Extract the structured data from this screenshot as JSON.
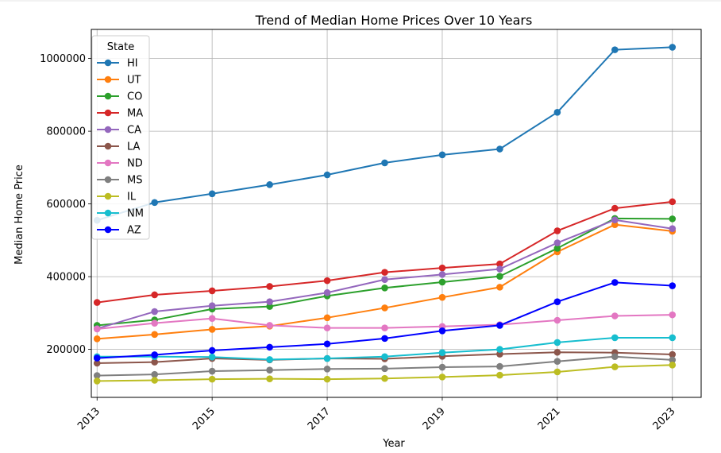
{
  "chart_data": {
    "type": "line",
    "title": "Trend of Median Home Prices Over 10 Years",
    "xlabel": "Year",
    "ylabel": "Median Home Price",
    "xlim": [
      2012.9,
      2023.5
    ],
    "ylim": [
      68000,
      1080000
    ],
    "x_ticks": [
      2013,
      2015,
      2017,
      2019,
      2021,
      2023
    ],
    "y_ticks": [
      200000,
      400000,
      600000,
      800000,
      1000000
    ],
    "grid": true,
    "legend_title": "State",
    "legend_position": "upper-left",
    "x": [
      2013,
      2014,
      2015,
      2016,
      2017,
      2018,
      2019,
      2020,
      2021,
      2022,
      2023
    ],
    "series": [
      {
        "name": "HI",
        "color": "#1f77b4",
        "values": [
          555000,
          604000,
          628000,
          653000,
          680000,
          713000,
          735000,
          751000,
          852000,
          1024000,
          1031000
        ]
      },
      {
        "name": "UT",
        "color": "#ff7f0e",
        "values": [
          229000,
          241000,
          255000,
          264000,
          287000,
          314000,
          343000,
          371000,
          468000,
          543000,
          525000
        ]
      },
      {
        "name": "CO",
        "color": "#2ca02c",
        "values": [
          266000,
          281000,
          311000,
          318000,
          347000,
          369000,
          385000,
          401000,
          478000,
          560000,
          559000
        ]
      },
      {
        "name": "MA",
        "color": "#d62728",
        "values": [
          329000,
          350000,
          361000,
          373000,
          389000,
          412000,
          424000,
          435000,
          526000,
          588000,
          606000
        ]
      },
      {
        "name": "CA",
        "color": "#9467bd",
        "values": [
          257000,
          304000,
          320000,
          331000,
          356000,
          392000,
          406000,
          421000,
          493000,
          556000,
          532000
        ]
      },
      {
        "name": "LA",
        "color": "#8c564b",
        "values": [
          162000,
          165000,
          175000,
          171000,
          175000,
          174000,
          181000,
          187000,
          192000,
          191000,
          186000
        ]
      },
      {
        "name": "ND",
        "color": "#e377c2",
        "values": [
          256000,
          272000,
          285000,
          266000,
          259000,
          259000,
          263000,
          268000,
          280000,
          292000,
          295000
        ]
      },
      {
        "name": "MS",
        "color": "#7f7f7f",
        "values": [
          128000,
          131000,
          140000,
          143000,
          146000,
          147000,
          151000,
          153000,
          167000,
          180000,
          171000
        ]
      },
      {
        "name": "IL",
        "color": "#bcbd22",
        "values": [
          113000,
          115000,
          118000,
          119000,
          118000,
          120000,
          124000,
          129000,
          138000,
          152000,
          157000
        ]
      },
      {
        "name": "NM",
        "color": "#17becf",
        "values": [
          180000,
          180000,
          179000,
          172000,
          175000,
          180000,
          191000,
          200000,
          219000,
          232000,
          232000
        ]
      },
      {
        "name": "AZ",
        "color": "#0000ff",
        "values": [
          176000,
          185000,
          197000,
          206000,
          215000,
          230000,
          251000,
          266000,
          331000,
          384000,
          375000
        ]
      }
    ]
  }
}
